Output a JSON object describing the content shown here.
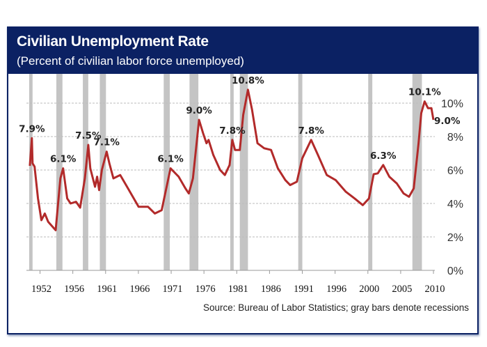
{
  "header": {
    "title": "Civilian Unemployment Rate",
    "subtitle": "(Percent of civilian labor force unemployed)"
  },
  "source": "Source: Bureau of Labor Statistics; gray bars denote recessions",
  "colors": {
    "header": "#0b2163",
    "line": "#b22a2a",
    "recession": "#c4c4c4",
    "grid": "#bbbbbb"
  },
  "chart_data": {
    "type": "line",
    "title": "Civilian Unemployment Rate",
    "subtitle": "(Percent of civilian labor force unemployed)",
    "xlabel": "",
    "ylabel": "",
    "xlim": [
      1950,
      2010.1
    ],
    "ylim": [
      0,
      11
    ],
    "grid": true,
    "x_tick_labels": [
      "1952",
      "1956",
      "1961",
      "1966",
      "1971",
      "1976",
      "1981",
      "1986",
      "1991",
      "1996",
      "2000",
      "2005",
      "2010"
    ],
    "y_ticks": [
      0,
      2,
      4,
      6,
      8,
      10
    ],
    "y_tick_labels": [
      "0%",
      "2%",
      "4%",
      "6%",
      "8%",
      "10%"
    ],
    "series": [
      {
        "name": "Unemployment rate",
        "x": [
          1950.5,
          1950.8,
          1950.9,
          1951.2,
          1951.7,
          1952.2,
          1952.7,
          1953.2,
          1954.3,
          1955.0,
          1955.4,
          1956.0,
          1956.5,
          1957.3,
          1957.9,
          1958.6,
          1959.1,
          1959.4,
          1960.1,
          1960.4,
          1960.7,
          1961.1,
          1961.8,
          1962.2,
          1962.8,
          1963.8,
          1964.8,
          1966.5,
          1967.9,
          1968.9,
          1969.9,
          1971.2,
          1972.4,
          1973.4,
          1973.9,
          1974.5,
          1975.4,
          1976.0,
          1976.5,
          1976.8,
          1977.5,
          1978.5,
          1979.2,
          1979.9,
          1980.3,
          1980.7,
          1981.4,
          1981.9,
          1982.6,
          1983.2,
          1984.0,
          1985.0,
          1986.0,
          1987.0,
          1988.1,
          1988.8,
          1989.8,
          1990.6,
          1991.9,
          1992.9,
          1994.2,
          1995.5,
          1997.0,
          1998.3,
          1999.5,
          2000.4,
          2001.1,
          2001.7,
          2002.5,
          2003.4,
          2004.5,
          2005.5,
          2006.3,
          2007.0,
          2007.7,
          2008.1,
          2008.6,
          2009.1,
          2009.6,
          2009.9
        ],
        "values": [
          6.25,
          7.9,
          6.4,
          6.2,
          4.3,
          3.0,
          3.4,
          2.9,
          2.4,
          5.5,
          6.1,
          4.3,
          4.0,
          4.1,
          3.75,
          5.5,
          7.5,
          6.1,
          5.0,
          5.6,
          4.8,
          6.0,
          7.1,
          6.4,
          5.5,
          5.7,
          5.0,
          3.8,
          3.8,
          3.4,
          3.6,
          6.1,
          5.6,
          4.9,
          4.6,
          5.5,
          9.0,
          8.2,
          7.6,
          7.8,
          6.9,
          6.0,
          5.7,
          6.3,
          7.8,
          7.2,
          7.2,
          9.3,
          10.8,
          9.6,
          7.6,
          7.3,
          7.2,
          6.1,
          5.4,
          5.1,
          5.3,
          6.7,
          7.8,
          6.9,
          5.7,
          5.4,
          4.7,
          4.3,
          3.9,
          4.3,
          5.75,
          5.8,
          6.3,
          5.6,
          5.2,
          4.6,
          4.4,
          4.9,
          7.6,
          9.4,
          10.1,
          9.7,
          9.7,
          9.0
        ]
      }
    ],
    "recessions": [
      [
        1950.4,
        1950.9
      ],
      [
        1954.4,
        1955.3
      ],
      [
        1958.3,
        1959.1
      ],
      [
        1960.8,
        1961.7
      ],
      [
        1970.2,
        1971.1
      ],
      [
        1974.0,
        1975.3
      ],
      [
        1980.0,
        1980.5
      ],
      [
        1981.4,
        1982.6
      ],
      [
        1990.0,
        1990.6
      ],
      [
        2000.3,
        2000.9
      ],
      [
        2006.8,
        2008.2
      ]
    ],
    "annotations": [
      {
        "text": "7.9%",
        "x": 1950.8,
        "y": 7.9
      },
      {
        "text": "6.1%",
        "x": 1955.4,
        "y": 6.1
      },
      {
        "text": "7.5%",
        "x": 1959.1,
        "y": 7.5
      },
      {
        "text": "7.1%",
        "x": 1961.8,
        "y": 7.1
      },
      {
        "text": "6.1%",
        "x": 1971.2,
        "y": 6.1
      },
      {
        "text": "9.0%",
        "x": 1975.4,
        "y": 9.0
      },
      {
        "text": "7.8%",
        "x": 1980.3,
        "y": 7.8
      },
      {
        "text": "10.8%",
        "x": 1982.6,
        "y": 10.8
      },
      {
        "text": "7.8%",
        "x": 1991.9,
        "y": 7.8
      },
      {
        "text": "6.3%",
        "x": 2002.5,
        "y": 6.3
      },
      {
        "text": "10.1%",
        "x": 2008.6,
        "y": 10.1
      },
      {
        "text": "9.0%",
        "x": 2009.9,
        "y": 9.0,
        "side": "right"
      }
    ]
  }
}
